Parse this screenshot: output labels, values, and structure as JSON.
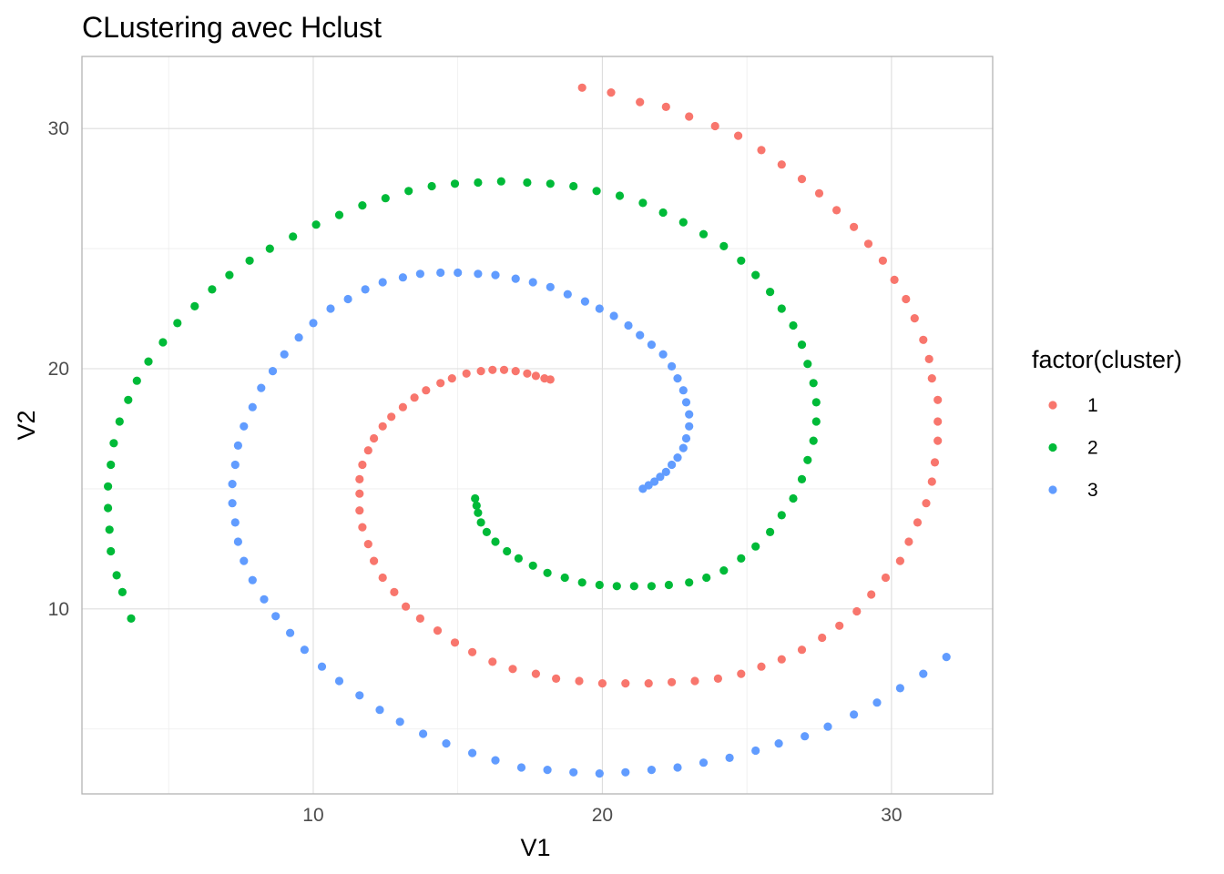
{
  "chart_data": {
    "type": "scatter",
    "title": "CLustering avec Hclust",
    "xlabel": "V1",
    "ylabel": "V2",
    "xlim": [
      2,
      33.5
    ],
    "ylim": [
      2.3,
      33
    ],
    "x_ticks": [
      10,
      20,
      30
    ],
    "y_ticks": [
      10,
      20,
      30
    ],
    "grid": true,
    "legend": {
      "title": "factor(cluster)",
      "position": "right"
    },
    "series": [
      {
        "name": "1",
        "color": "#F8766D",
        "points": [
          [
            19.3,
            31.7
          ],
          [
            20.3,
            31.5
          ],
          [
            21.3,
            31.1
          ],
          [
            22.2,
            30.9
          ],
          [
            23.0,
            30.5
          ],
          [
            23.9,
            30.1
          ],
          [
            24.7,
            29.7
          ],
          [
            25.5,
            29.1
          ],
          [
            26.2,
            28.5
          ],
          [
            26.9,
            27.9
          ],
          [
            27.5,
            27.3
          ],
          [
            28.1,
            26.6
          ],
          [
            28.7,
            25.9
          ],
          [
            29.2,
            25.2
          ],
          [
            29.7,
            24.5
          ],
          [
            30.1,
            23.7
          ],
          [
            30.5,
            22.9
          ],
          [
            30.8,
            22.1
          ],
          [
            31.1,
            21.2
          ],
          [
            31.3,
            20.4
          ],
          [
            31.4,
            19.6
          ],
          [
            31.6,
            18.7
          ],
          [
            31.6,
            17.8
          ],
          [
            31.6,
            17.0
          ],
          [
            31.5,
            16.1
          ],
          [
            31.4,
            15.3
          ],
          [
            31.2,
            14.4
          ],
          [
            30.9,
            13.6
          ],
          [
            30.6,
            12.8
          ],
          [
            30.3,
            12.0
          ],
          [
            29.8,
            11.3
          ],
          [
            29.3,
            10.6
          ],
          [
            28.8,
            9.9
          ],
          [
            28.2,
            9.3
          ],
          [
            27.6,
            8.8
          ],
          [
            26.9,
            8.3
          ],
          [
            26.2,
            7.9
          ],
          [
            25.5,
            7.6
          ],
          [
            24.8,
            7.3
          ],
          [
            24.0,
            7.1
          ],
          [
            23.2,
            7.0
          ],
          [
            22.4,
            6.95
          ],
          [
            21.6,
            6.9
          ],
          [
            20.8,
            6.9
          ],
          [
            20.0,
            6.9
          ],
          [
            19.2,
            7.0
          ],
          [
            18.4,
            7.1
          ],
          [
            17.7,
            7.3
          ],
          [
            16.9,
            7.5
          ],
          [
            16.2,
            7.8
          ],
          [
            15.5,
            8.2
          ],
          [
            14.9,
            8.6
          ],
          [
            14.3,
            9.1
          ],
          [
            13.7,
            9.6
          ],
          [
            13.2,
            10.1
          ],
          [
            12.8,
            10.7
          ],
          [
            12.4,
            11.3
          ],
          [
            12.1,
            12.0
          ],
          [
            11.9,
            12.7
          ],
          [
            11.7,
            13.4
          ],
          [
            11.6,
            14.1
          ],
          [
            11.6,
            14.8
          ],
          [
            11.6,
            15.4
          ],
          [
            11.7,
            16.0
          ],
          [
            11.9,
            16.6
          ],
          [
            12.1,
            17.1
          ],
          [
            12.4,
            17.6
          ],
          [
            12.7,
            18.0
          ],
          [
            13.1,
            18.4
          ],
          [
            13.5,
            18.8
          ],
          [
            13.9,
            19.1
          ],
          [
            14.4,
            19.4
          ],
          [
            14.8,
            19.6
          ],
          [
            15.3,
            19.8
          ],
          [
            15.8,
            19.9
          ],
          [
            16.2,
            19.95
          ],
          [
            16.6,
            19.95
          ],
          [
            17.0,
            19.9
          ],
          [
            17.4,
            19.8
          ],
          [
            17.7,
            19.7
          ],
          [
            18.0,
            19.6
          ],
          [
            18.2,
            19.55
          ]
        ]
      },
      {
        "name": "2",
        "color": "#00BA38",
        "points": [
          [
            3.7,
            9.6
          ],
          [
            3.4,
            10.7
          ],
          [
            3.2,
            11.4
          ],
          [
            3.0,
            12.4
          ],
          [
            2.95,
            13.3
          ],
          [
            2.9,
            14.2
          ],
          [
            2.9,
            15.1
          ],
          [
            3.0,
            16.0
          ],
          [
            3.1,
            16.9
          ],
          [
            3.3,
            17.8
          ],
          [
            3.6,
            18.7
          ],
          [
            3.9,
            19.5
          ],
          [
            4.3,
            20.3
          ],
          [
            4.8,
            21.1
          ],
          [
            5.3,
            21.9
          ],
          [
            5.9,
            22.6
          ],
          [
            6.5,
            23.3
          ],
          [
            7.1,
            23.9
          ],
          [
            7.8,
            24.5
          ],
          [
            8.5,
            25.0
          ],
          [
            9.3,
            25.5
          ],
          [
            10.1,
            26.0
          ],
          [
            10.9,
            26.4
          ],
          [
            11.7,
            26.8
          ],
          [
            12.5,
            27.1
          ],
          [
            13.3,
            27.4
          ],
          [
            14.1,
            27.6
          ],
          [
            14.9,
            27.7
          ],
          [
            15.7,
            27.75
          ],
          [
            16.5,
            27.8
          ],
          [
            17.4,
            27.75
          ],
          [
            18.2,
            27.7
          ],
          [
            19.0,
            27.6
          ],
          [
            19.8,
            27.4
          ],
          [
            20.6,
            27.2
          ],
          [
            21.4,
            26.9
          ],
          [
            22.1,
            26.5
          ],
          [
            22.8,
            26.1
          ],
          [
            23.5,
            25.6
          ],
          [
            24.2,
            25.1
          ],
          [
            24.8,
            24.5
          ],
          [
            25.3,
            23.9
          ],
          [
            25.8,
            23.2
          ],
          [
            26.2,
            22.5
          ],
          [
            26.6,
            21.8
          ],
          [
            26.9,
            21.0
          ],
          [
            27.1,
            20.2
          ],
          [
            27.3,
            19.4
          ],
          [
            27.4,
            18.6
          ],
          [
            27.4,
            17.8
          ],
          [
            27.3,
            17.0
          ],
          [
            27.1,
            16.2
          ],
          [
            26.9,
            15.4
          ],
          [
            26.6,
            14.6
          ],
          [
            26.2,
            13.9
          ],
          [
            25.8,
            13.2
          ],
          [
            25.3,
            12.6
          ],
          [
            24.8,
            12.1
          ],
          [
            24.2,
            11.6
          ],
          [
            23.6,
            11.3
          ],
          [
            23.0,
            11.1
          ],
          [
            22.3,
            11.0
          ],
          [
            21.7,
            10.95
          ],
          [
            21.1,
            10.95
          ],
          [
            20.5,
            10.95
          ],
          [
            19.9,
            11.0
          ],
          [
            19.3,
            11.1
          ],
          [
            18.7,
            11.3
          ],
          [
            18.1,
            11.5
          ],
          [
            17.6,
            11.8
          ],
          [
            17.1,
            12.1
          ],
          [
            16.7,
            12.4
          ],
          [
            16.3,
            12.8
          ],
          [
            16.0,
            13.2
          ],
          [
            15.8,
            13.6
          ],
          [
            15.7,
            14.0
          ],
          [
            15.65,
            14.3
          ],
          [
            15.6,
            14.6
          ]
        ]
      },
      {
        "name": "3",
        "color": "#619CFF",
        "points": [
          [
            31.9,
            8.0
          ],
          [
            31.1,
            7.3
          ],
          [
            30.3,
            6.7
          ],
          [
            29.5,
            6.1
          ],
          [
            28.7,
            5.6
          ],
          [
            27.8,
            5.1
          ],
          [
            27.0,
            4.7
          ],
          [
            26.1,
            4.4
          ],
          [
            25.3,
            4.1
          ],
          [
            24.4,
            3.8
          ],
          [
            23.5,
            3.6
          ],
          [
            22.6,
            3.4
          ],
          [
            21.7,
            3.3
          ],
          [
            20.8,
            3.2
          ],
          [
            19.9,
            3.15
          ],
          [
            19.0,
            3.2
          ],
          [
            18.1,
            3.3
          ],
          [
            17.2,
            3.4
          ],
          [
            16.3,
            3.7
          ],
          [
            15.5,
            4.0
          ],
          [
            14.6,
            4.4
          ],
          [
            13.8,
            4.8
          ],
          [
            13.0,
            5.3
          ],
          [
            12.3,
            5.8
          ],
          [
            11.6,
            6.4
          ],
          [
            10.9,
            7.0
          ],
          [
            10.3,
            7.6
          ],
          [
            9.7,
            8.3
          ],
          [
            9.2,
            9.0
          ],
          [
            8.7,
            9.7
          ],
          [
            8.3,
            10.4
          ],
          [
            7.9,
            11.2
          ],
          [
            7.6,
            12.0
          ],
          [
            7.4,
            12.8
          ],
          [
            7.3,
            13.6
          ],
          [
            7.2,
            14.4
          ],
          [
            7.2,
            15.2
          ],
          [
            7.3,
            16.0
          ],
          [
            7.4,
            16.8
          ],
          [
            7.6,
            17.6
          ],
          [
            7.9,
            18.4
          ],
          [
            8.2,
            19.2
          ],
          [
            8.6,
            19.9
          ],
          [
            9.0,
            20.6
          ],
          [
            9.5,
            21.3
          ],
          [
            10.0,
            21.9
          ],
          [
            10.6,
            22.5
          ],
          [
            11.2,
            22.9
          ],
          [
            11.8,
            23.3
          ],
          [
            12.4,
            23.6
          ],
          [
            13.1,
            23.8
          ],
          [
            13.7,
            23.95
          ],
          [
            14.4,
            24.0
          ],
          [
            15.0,
            24.0
          ],
          [
            15.7,
            23.95
          ],
          [
            16.3,
            23.9
          ],
          [
            17.0,
            23.75
          ],
          [
            17.6,
            23.6
          ],
          [
            18.2,
            23.4
          ],
          [
            18.8,
            23.1
          ],
          [
            19.4,
            22.8
          ],
          [
            19.9,
            22.5
          ],
          [
            20.4,
            22.2
          ],
          [
            20.9,
            21.8
          ],
          [
            21.3,
            21.4
          ],
          [
            21.7,
            21.0
          ],
          [
            22.1,
            20.6
          ],
          [
            22.4,
            20.1
          ],
          [
            22.6,
            19.6
          ],
          [
            22.8,
            19.1
          ],
          [
            22.9,
            18.6
          ],
          [
            23.0,
            18.1
          ],
          [
            23.0,
            17.6
          ],
          [
            22.9,
            17.1
          ],
          [
            22.8,
            16.7
          ],
          [
            22.6,
            16.3
          ],
          [
            22.4,
            16.0
          ],
          [
            22.2,
            15.7
          ],
          [
            22.0,
            15.5
          ],
          [
            21.8,
            15.3
          ],
          [
            21.6,
            15.15
          ],
          [
            21.4,
            15.0
          ]
        ]
      }
    ]
  }
}
